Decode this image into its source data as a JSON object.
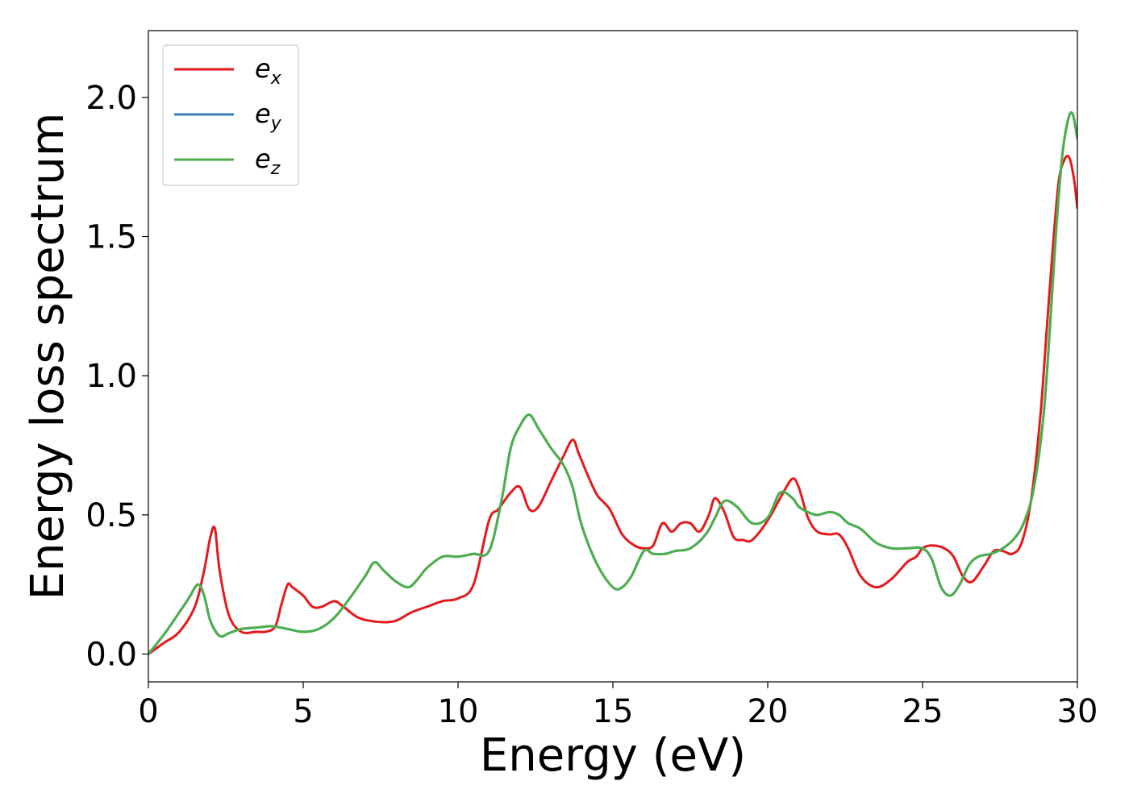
{
  "chart_data": {
    "type": "line",
    "xlabel": "Energy (eV)",
    "ylabel": "Energy loss spectrum",
    "xlim": [
      0,
      30
    ],
    "ylim": [
      -0.1,
      2.24
    ],
    "xticks": [
      0,
      5,
      10,
      15,
      20,
      25,
      30
    ],
    "xtick_labels": [
      "0",
      "5",
      "10",
      "15",
      "20",
      "25",
      "30"
    ],
    "yticks": [
      0.0,
      0.5,
      1.0,
      1.5,
      2.0
    ],
    "ytick_labels": [
      "0.0",
      "0.5",
      "1.0",
      "1.5",
      "2.0"
    ],
    "grid": false,
    "legend_position": "top-left",
    "series": [
      {
        "name": "e_x",
        "label_base": "e",
        "label_sub": "x",
        "color": "#e41a1c",
        "x": [
          0.0,
          0.5,
          1.0,
          1.5,
          1.8,
          2.0,
          2.15,
          2.3,
          2.6,
          3.0,
          3.5,
          3.8,
          4.1,
          4.3,
          4.5,
          4.65,
          5.0,
          5.3,
          5.6,
          6.0,
          6.3,
          6.8,
          7.5,
          8.0,
          8.5,
          9.0,
          9.5,
          10.0,
          10.5,
          11.0,
          11.3,
          11.7,
          12.0,
          12.3,
          12.6,
          13.0,
          13.4,
          13.7,
          13.9,
          14.2,
          14.5,
          14.9,
          15.3,
          15.7,
          16.0,
          16.3,
          16.6,
          16.9,
          17.2,
          17.5,
          17.8,
          18.1,
          18.3,
          18.6,
          18.9,
          19.2,
          19.5,
          20.0,
          20.5,
          20.8,
          21.0,
          21.3,
          21.6,
          22.0,
          22.3,
          22.6,
          23.0,
          23.5,
          24.0,
          24.5,
          24.8,
          25.0,
          25.3,
          25.7,
          26.0,
          26.3,
          26.6,
          27.0,
          27.3,
          27.6,
          27.9,
          28.2,
          28.5,
          28.8,
          29.0,
          29.2,
          29.4,
          29.6,
          29.75,
          29.9,
          30.0
        ],
        "y": [
          0.0,
          0.04,
          0.08,
          0.17,
          0.3,
          0.42,
          0.45,
          0.3,
          0.14,
          0.08,
          0.08,
          0.08,
          0.1,
          0.18,
          0.25,
          0.24,
          0.21,
          0.17,
          0.17,
          0.19,
          0.17,
          0.13,
          0.115,
          0.12,
          0.15,
          0.17,
          0.19,
          0.2,
          0.25,
          0.48,
          0.52,
          0.58,
          0.6,
          0.52,
          0.53,
          0.62,
          0.71,
          0.77,
          0.72,
          0.64,
          0.57,
          0.52,
          0.43,
          0.39,
          0.38,
          0.39,
          0.47,
          0.44,
          0.47,
          0.47,
          0.44,
          0.5,
          0.56,
          0.51,
          0.42,
          0.41,
          0.41,
          0.48,
          0.58,
          0.63,
          0.6,
          0.49,
          0.44,
          0.43,
          0.43,
          0.38,
          0.28,
          0.24,
          0.27,
          0.33,
          0.35,
          0.38,
          0.39,
          0.38,
          0.35,
          0.28,
          0.26,
          0.32,
          0.37,
          0.37,
          0.36,
          0.4,
          0.55,
          0.85,
          1.15,
          1.45,
          1.7,
          1.78,
          1.78,
          1.7,
          1.6
        ]
      },
      {
        "name": "e_y",
        "label_base": "e",
        "label_sub": "y",
        "color": "#377eb8",
        "x": [
          0.0,
          0.5,
          1.0,
          1.3,
          1.6,
          1.8,
          2.0,
          2.3,
          2.6,
          3.0,
          3.5,
          4.0,
          4.5,
          5.0,
          5.5,
          6.0,
          6.5,
          7.0,
          7.3,
          7.6,
          8.0,
          8.4,
          8.7,
          9.0,
          9.5,
          10.0,
          10.5,
          11.0,
          11.4,
          11.7,
          12.0,
          12.3,
          12.6,
          13.0,
          13.4,
          13.7,
          14.0,
          14.5,
          15.0,
          15.3,
          15.6,
          16.0,
          16.3,
          16.7,
          17.0,
          17.5,
          18.0,
          18.3,
          18.6,
          19.0,
          19.5,
          20.0,
          20.4,
          20.8,
          21.0,
          21.3,
          21.6,
          22.0,
          22.3,
          22.6,
          23.0,
          23.5,
          24.0,
          24.5,
          25.0,
          25.3,
          25.6,
          25.9,
          26.2,
          26.5,
          26.8,
          27.2,
          27.6,
          28.0,
          28.3,
          28.6,
          28.9,
          29.1,
          29.3,
          29.5,
          29.7,
          29.85,
          30.0
        ],
        "y": [
          0.0,
          0.07,
          0.15,
          0.2,
          0.25,
          0.21,
          0.12,
          0.065,
          0.075,
          0.09,
          0.095,
          0.1,
          0.09,
          0.08,
          0.09,
          0.13,
          0.2,
          0.28,
          0.33,
          0.3,
          0.26,
          0.24,
          0.27,
          0.31,
          0.35,
          0.35,
          0.36,
          0.37,
          0.55,
          0.74,
          0.82,
          0.86,
          0.81,
          0.74,
          0.68,
          0.6,
          0.46,
          0.32,
          0.24,
          0.24,
          0.28,
          0.37,
          0.36,
          0.36,
          0.37,
          0.38,
          0.43,
          0.49,
          0.55,
          0.53,
          0.47,
          0.49,
          0.58,
          0.56,
          0.53,
          0.51,
          0.5,
          0.51,
          0.5,
          0.47,
          0.45,
          0.4,
          0.38,
          0.38,
          0.38,
          0.34,
          0.24,
          0.21,
          0.25,
          0.32,
          0.35,
          0.36,
          0.38,
          0.42,
          0.48,
          0.6,
          0.85,
          1.15,
          1.5,
          1.78,
          1.92,
          1.94,
          1.85
        ]
      },
      {
        "name": "e_z",
        "label_base": "e",
        "label_sub": "z",
        "color": "#4daf4a",
        "x": [
          0.0,
          0.5,
          1.0,
          1.3,
          1.6,
          1.8,
          2.0,
          2.3,
          2.6,
          3.0,
          3.5,
          4.0,
          4.5,
          5.0,
          5.5,
          6.0,
          6.5,
          7.0,
          7.3,
          7.6,
          8.0,
          8.4,
          8.7,
          9.0,
          9.5,
          10.0,
          10.5,
          11.0,
          11.4,
          11.7,
          12.0,
          12.3,
          12.6,
          13.0,
          13.4,
          13.7,
          14.0,
          14.5,
          15.0,
          15.3,
          15.6,
          16.0,
          16.3,
          16.7,
          17.0,
          17.5,
          18.0,
          18.3,
          18.6,
          19.0,
          19.5,
          20.0,
          20.4,
          20.8,
          21.0,
          21.3,
          21.6,
          22.0,
          22.3,
          22.6,
          23.0,
          23.5,
          24.0,
          24.5,
          25.0,
          25.3,
          25.6,
          25.9,
          26.2,
          26.5,
          26.8,
          27.2,
          27.6,
          28.0,
          28.3,
          28.6,
          28.9,
          29.1,
          29.3,
          29.5,
          29.7,
          29.85,
          30.0
        ],
        "y": [
          0.0,
          0.07,
          0.15,
          0.2,
          0.25,
          0.21,
          0.12,
          0.065,
          0.075,
          0.09,
          0.095,
          0.1,
          0.09,
          0.08,
          0.09,
          0.13,
          0.2,
          0.28,
          0.33,
          0.3,
          0.26,
          0.24,
          0.27,
          0.31,
          0.35,
          0.35,
          0.36,
          0.37,
          0.55,
          0.74,
          0.82,
          0.86,
          0.81,
          0.74,
          0.68,
          0.6,
          0.46,
          0.32,
          0.24,
          0.24,
          0.28,
          0.37,
          0.36,
          0.36,
          0.37,
          0.38,
          0.43,
          0.49,
          0.55,
          0.53,
          0.47,
          0.49,
          0.58,
          0.56,
          0.53,
          0.51,
          0.5,
          0.51,
          0.5,
          0.47,
          0.45,
          0.4,
          0.38,
          0.38,
          0.38,
          0.34,
          0.24,
          0.21,
          0.25,
          0.32,
          0.35,
          0.36,
          0.38,
          0.42,
          0.48,
          0.6,
          0.85,
          1.15,
          1.5,
          1.78,
          1.92,
          1.94,
          1.85
        ]
      }
    ]
  }
}
